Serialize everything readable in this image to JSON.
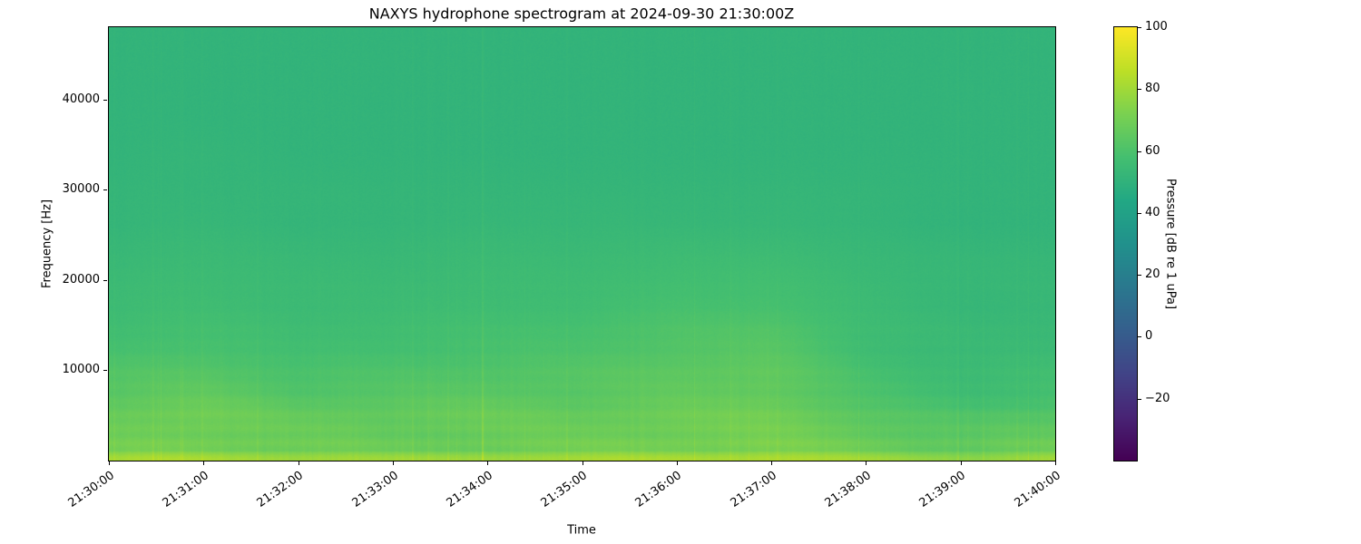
{
  "chart_data": {
    "type": "heatmap",
    "title": "NAXYS hydrophone spectrogram at 2024-09-30 21:30:00Z",
    "xlabel": "Time",
    "ylabel": "Frequency [Hz]",
    "colorbar_label": "Pressure [dB re 1 uPa]",
    "colormap": "viridis",
    "legend": "none",
    "grid": false,
    "xlim_minutes": [
      0,
      10
    ],
    "ylim_hz": [
      0,
      48000
    ],
    "clim_db": [
      -40,
      100
    ],
    "x_tick_labels": [
      "21:30:00",
      "21:31:00",
      "21:32:00",
      "21:33:00",
      "21:34:00",
      "21:35:00",
      "21:36:00",
      "21:37:00",
      "21:38:00",
      "21:39:00",
      "21:40:00"
    ],
    "x_tick_minutes": [
      0,
      1,
      2,
      3,
      4,
      5,
      6,
      7,
      8,
      9,
      10
    ],
    "y_tick_hz": [
      10000,
      20000,
      30000,
      40000
    ],
    "colorbar_tick_values": [
      100,
      80,
      60,
      40,
      20,
      0,
      -20
    ],
    "colorbar_tick_labels": [
      "100",
      "80",
      "60",
      "40",
      "20",
      "0",
      "−20"
    ],
    "time_bin_minutes": [
      0,
      1,
      2,
      3,
      4,
      5,
      6,
      7,
      8,
      9,
      10
    ],
    "freq_bin_centers_hz": [
      2000,
      6000,
      10000,
      14000,
      18000,
      22000,
      26000,
      30000,
      34000,
      38000,
      42000,
      46000
    ],
    "values_db": [
      [
        70,
        71,
        69,
        68,
        69,
        70,
        71,
        72,
        69,
        66,
        68
      ],
      [
        66,
        68,
        64,
        65,
        66,
        65,
        67,
        68,
        62,
        58,
        60
      ],
      [
        61,
        62,
        59,
        60,
        61,
        62,
        64,
        65,
        58,
        55,
        56
      ],
      [
        57,
        58,
        56,
        57,
        58,
        59,
        61,
        62,
        56,
        54,
        54
      ],
      [
        55,
        56,
        55,
        55,
        56,
        56,
        58,
        58,
        55,
        53,
        53
      ],
      [
        54,
        55,
        54,
        54,
        55,
        55,
        56,
        56,
        54,
        53,
        53
      ],
      [
        52,
        53,
        52,
        52,
        53,
        53,
        53,
        53,
        52,
        51,
        51
      ],
      [
        52,
        52,
        52,
        52,
        52,
        52,
        52,
        52,
        52,
        51,
        51
      ],
      [
        51,
        52,
        51,
        51,
        51,
        51,
        51,
        51,
        51,
        51,
        51
      ],
      [
        51,
        51,
        51,
        51,
        51,
        51,
        51,
        51,
        51,
        51,
        51
      ],
      [
        51,
        51,
        51,
        51,
        51,
        51,
        51,
        51,
        51,
        51,
        51
      ],
      [
        51,
        51,
        51,
        51,
        51,
        51,
        51,
        51,
        51,
        51,
        51
      ]
    ],
    "values_db_note": "rows ordered low frequency to high frequency, columns per minute 21:30 to 21:40"
  }
}
